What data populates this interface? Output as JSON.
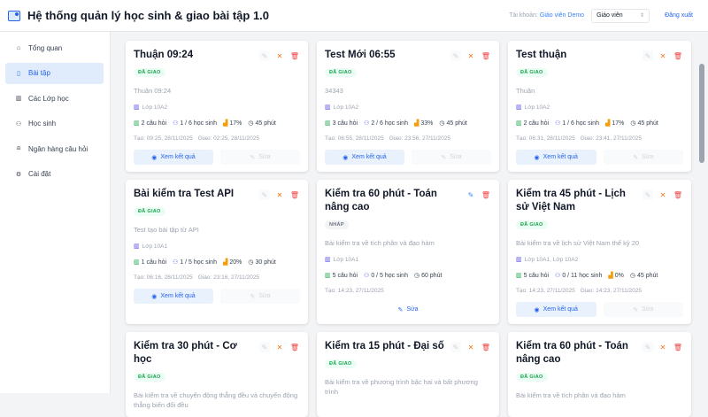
{
  "header": {
    "title": "Hệ thống quản lý học sinh & giao bài tập 1.0",
    "account_label": "Tài khoản:",
    "account_name": "Giáo viên Demo",
    "role": "Giáo viên",
    "logout": "Đăng xuất"
  },
  "sidebar": {
    "items": [
      {
        "label": "Tổng quan",
        "icon": "home-icon"
      },
      {
        "label": "Bài tập",
        "icon": "document-icon",
        "active": true
      },
      {
        "label": "Các Lớp học",
        "icon": "book-icon"
      },
      {
        "label": "Học sinh",
        "icon": "users-icon"
      },
      {
        "label": "Ngân hàng câu hỏi",
        "icon": "database-icon"
      },
      {
        "label": "Cài đặt",
        "icon": "gear-icon"
      }
    ]
  },
  "labels": {
    "view": "Xem kết quả",
    "edit": "Sửa"
  },
  "colors": {
    "accent": "#2563eb",
    "published": "#16a34a",
    "delete": "#ef4444",
    "close": "#f97316"
  },
  "cards": [
    {
      "title": "Thuận 09:24",
      "status": "ĐÃ GIAO",
      "draft": false,
      "description": "Thuận 09:24",
      "classes": "Lớp 10A2",
      "questions": "2 câu hỏi",
      "students": "1 / 6 học sinh",
      "percent": "17%",
      "duration": "45 phút",
      "created": "Tạo: 09:25, 28/11/2025",
      "assigned": "Giao: 02:25, 28/11/2025"
    },
    {
      "title": "Test Mới 06:55",
      "status": "ĐÃ GIAO",
      "draft": false,
      "description": "34343",
      "classes": "Lớp 10A2",
      "questions": "3 câu hỏi",
      "students": "2 / 6 học sinh",
      "percent": "33%",
      "duration": "45 phút",
      "created": "Tạo: 06:55, 28/11/2025",
      "assigned": "Giao: 23:56, 27/11/2025"
    },
    {
      "title": "Test thuận",
      "status": "ĐÃ GIAO",
      "draft": false,
      "description": "Thuận",
      "classes": "Lớp 10A2",
      "questions": "2 câu hỏi",
      "students": "1 / 6 học sinh",
      "percent": "17%",
      "duration": "45 phút",
      "created": "Tạo: 06:31, 28/11/2025",
      "assigned": "Giao: 23:41, 27/11/2025"
    },
    {
      "title": "Bài kiểm tra Test API",
      "status": "ĐÃ GIAO",
      "draft": false,
      "description": "Test tạo bài tập từ API",
      "classes": "Lớp 10A1",
      "questions": "1 câu hỏi",
      "students": "1 / 5 học sinh",
      "percent": "20%",
      "duration": "30 phút",
      "created": "Tạo: 06:16, 28/11/2025",
      "assigned": "Giao: 23:16, 27/11/2025"
    },
    {
      "title": "Kiểm tra 60 phút - Toán nâng cao",
      "status": "NHÁP",
      "draft": true,
      "description": "Bài kiểm tra về tích phân và đạo hàm",
      "classes": "Lớp 10A1",
      "questions": "5 câu hỏi",
      "students": "0 / 5 học sinh",
      "duration": "60 phút",
      "created": "Tạo: 14:23, 27/11/2025"
    },
    {
      "title": "Kiểm tra 45 phút - Lịch sử Việt Nam",
      "status": "ĐÃ GIAO",
      "draft": false,
      "description": "Bài kiểm tra về lịch sử Việt Nam thế kỷ 20",
      "classes": "Lớp 10A1, Lớp 10A2",
      "questions": "5 câu hỏi",
      "students": "0 / 11 học sinh",
      "percent": "0%",
      "duration": "45 phút",
      "created": "Tạo: 14:23, 27/11/2025",
      "assigned": "Giao: 14:23, 27/11/2025"
    },
    {
      "title": "Kiểm tra 30 phút - Cơ học",
      "status": "ĐÃ GIAO",
      "draft": false,
      "description": "Bài kiểm tra về chuyển động thẳng đều và chuyển động thẳng biến đổi đều"
    },
    {
      "title": "Kiểm tra 15 phút - Đại số",
      "status": "ĐÃ GIAO",
      "draft": false,
      "description": "Bài kiểm tra về phương trình bậc hai và bất phương trình"
    },
    {
      "title": "Kiểm tra 60 phút - Toán nâng cao",
      "status": "ĐÃ GIAO",
      "draft": false,
      "description": "Bài kiểm tra về tích phân và đạo hàm"
    }
  ]
}
